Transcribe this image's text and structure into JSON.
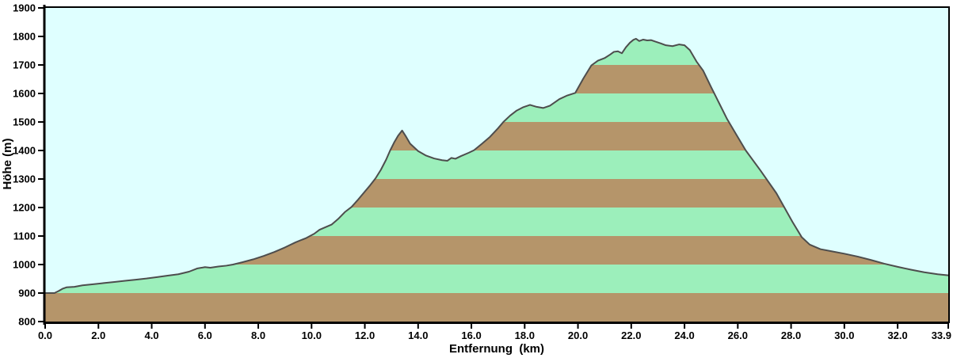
{
  "chart_data": {
    "type": "area",
    "title": "",
    "xlabel": "Entfernung  (km)",
    "ylabel": "Höhe (m)",
    "xlim": [
      0.0,
      33.9
    ],
    "ylim": [
      800,
      1900
    ],
    "grid": false,
    "legend": false,
    "x_tick_labels": [
      "0.0",
      "2.0",
      "4.0",
      "6.0",
      "8.0",
      "10.0",
      "12.0",
      "14.0",
      "16.0",
      "18.0",
      "20.0",
      "22.0",
      "24.0",
      "26.0",
      "28.0",
      "30.0",
      "32.0",
      "33.9"
    ],
    "y_tick_labels": [
      "800",
      "900",
      "1000",
      "1100",
      "1200",
      "1300",
      "1400",
      "1500",
      "1600",
      "1700",
      "1800",
      "1900"
    ],
    "colors": {
      "plot_background": "#DFFFFF",
      "outer_background": "#FFFFFF",
      "band_brown": "#B5956A",
      "band_green": "#9CEFBB",
      "profile_line": "#4D4D4D",
      "axis": "#000000",
      "text": "#000000"
    },
    "bands": {
      "start": 800,
      "step": 100,
      "pattern": [
        "band_brown",
        "band_green"
      ],
      "note": "horizontal 100 m stripes under the profile, brown from 800, alternating with green"
    },
    "profile_points": [
      [
        0.0,
        900
      ],
      [
        0.35,
        900
      ],
      [
        0.5,
        907
      ],
      [
        0.65,
        915
      ],
      [
        0.8,
        920
      ],
      [
        1.1,
        922
      ],
      [
        1.4,
        927
      ],
      [
        1.8,
        931
      ],
      [
        2.2,
        935
      ],
      [
        2.6,
        939
      ],
      [
        3.0,
        943
      ],
      [
        3.4,
        947
      ],
      [
        3.8,
        951
      ],
      [
        4.2,
        956
      ],
      [
        4.6,
        961
      ],
      [
        5.0,
        966
      ],
      [
        5.4,
        975
      ],
      [
        5.7,
        986
      ],
      [
        6.0,
        991
      ],
      [
        6.2,
        989
      ],
      [
        6.5,
        993
      ],
      [
        6.8,
        996
      ],
      [
        7.05,
        1000
      ],
      [
        7.4,
        1008
      ],
      [
        7.8,
        1018
      ],
      [
        8.2,
        1030
      ],
      [
        8.6,
        1044
      ],
      [
        9.0,
        1060
      ],
      [
        9.4,
        1078
      ],
      [
        9.8,
        1093
      ],
      [
        10.1,
        1108
      ],
      [
        10.3,
        1122
      ],
      [
        10.55,
        1132
      ],
      [
        10.75,
        1140
      ],
      [
        11.0,
        1160
      ],
      [
        11.25,
        1184
      ],
      [
        11.5,
        1202
      ],
      [
        11.75,
        1228
      ],
      [
        12.0,
        1256
      ],
      [
        12.2,
        1278
      ],
      [
        12.4,
        1302
      ],
      [
        12.6,
        1332
      ],
      [
        12.8,
        1368
      ],
      [
        12.95,
        1400
      ],
      [
        13.1,
        1428
      ],
      [
        13.25,
        1452
      ],
      [
        13.4,
        1470
      ],
      [
        13.55,
        1448
      ],
      [
        13.7,
        1424
      ],
      [
        14.0,
        1398
      ],
      [
        14.3,
        1382
      ],
      [
        14.6,
        1372
      ],
      [
        14.9,
        1366
      ],
      [
        15.1,
        1364
      ],
      [
        15.25,
        1374
      ],
      [
        15.4,
        1371
      ],
      [
        15.6,
        1380
      ],
      [
        15.9,
        1392
      ],
      [
        16.1,
        1401
      ],
      [
        16.4,
        1424
      ],
      [
        16.7,
        1448
      ],
      [
        17.0,
        1478
      ],
      [
        17.2,
        1500
      ],
      [
        17.45,
        1522
      ],
      [
        17.7,
        1540
      ],
      [
        17.95,
        1552
      ],
      [
        18.2,
        1560
      ],
      [
        18.45,
        1553
      ],
      [
        18.7,
        1549
      ],
      [
        18.95,
        1557
      ],
      [
        19.3,
        1580
      ],
      [
        19.6,
        1593
      ],
      [
        19.9,
        1602
      ],
      [
        20.2,
        1652
      ],
      [
        20.5,
        1698
      ],
      [
        20.75,
        1715
      ],
      [
        21.0,
        1724
      ],
      [
        21.2,
        1736
      ],
      [
        21.35,
        1746
      ],
      [
        21.5,
        1748
      ],
      [
        21.65,
        1741
      ],
      [
        21.8,
        1762
      ],
      [
        21.95,
        1778
      ],
      [
        22.08,
        1788
      ],
      [
        22.18,
        1792
      ],
      [
        22.3,
        1784
      ],
      [
        22.45,
        1789
      ],
      [
        22.6,
        1786
      ],
      [
        22.75,
        1787
      ],
      [
        22.9,
        1782
      ],
      [
        23.1,
        1776
      ],
      [
        23.3,
        1769
      ],
      [
        23.55,
        1766
      ],
      [
        23.8,
        1772
      ],
      [
        24.0,
        1769
      ],
      [
        24.2,
        1752
      ],
      [
        24.45,
        1712
      ],
      [
        24.7,
        1680
      ],
      [
        25.0,
        1622
      ],
      [
        25.3,
        1566
      ],
      [
        25.6,
        1510
      ],
      [
        25.95,
        1455
      ],
      [
        26.3,
        1400
      ],
      [
        26.85,
        1330
      ],
      [
        27.45,
        1250
      ],
      [
        28.05,
        1150
      ],
      [
        28.4,
        1096
      ],
      [
        28.7,
        1070
      ],
      [
        29.1,
        1054
      ],
      [
        29.5,
        1047
      ],
      [
        30.0,
        1038
      ],
      [
        30.5,
        1028
      ],
      [
        31.0,
        1016
      ],
      [
        31.5,
        1003
      ],
      [
        32.0,
        992
      ],
      [
        32.5,
        982
      ],
      [
        33.0,
        973
      ],
      [
        33.5,
        966
      ],
      [
        33.9,
        962
      ]
    ],
    "landmarks": {
      "start_elevation_m": 900,
      "first_peak": {
        "km": 13.4,
        "m": 1470
      },
      "saddle": {
        "km": 15.1,
        "m": 1364
      },
      "summit": {
        "km": 22.18,
        "m": 1792
      },
      "end": {
        "km": 33.9,
        "m": 962
      }
    }
  }
}
